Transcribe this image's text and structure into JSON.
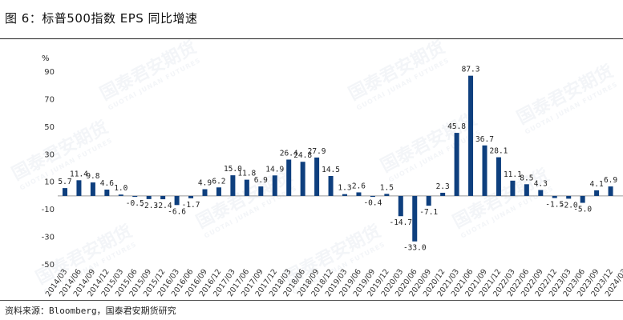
{
  "title": "图 6：标普500指数 EPS 同比增速",
  "source": "资料来源：Bloomberg，国泰君安期货研究",
  "watermark": {
    "cn": "国泰君安期货",
    "en": "GUOTAI JUNAN FUTURES"
  },
  "colors": {
    "bar": "#0E3F7E",
    "text": "#222222",
    "axis": "#666666"
  },
  "chart_data": {
    "type": "bar",
    "unit": "%",
    "ylim": [
      -50,
      90
    ],
    "yticks": [
      -50,
      -30,
      -10,
      10,
      30,
      50,
      70,
      90
    ],
    "grid": false,
    "categories": [
      "2014/03",
      "2014/06",
      "2014/09",
      "2014/12",
      "2015/03",
      "2015/06",
      "2015/09",
      "2015/12",
      "2016/03",
      "2016/06",
      "2016/09",
      "2016/12",
      "2017/03",
      "2017/06",
      "2017/09",
      "2017/12",
      "2018/03",
      "2018/06",
      "2018/09",
      "2018/12",
      "2019/03",
      "2019/06",
      "2019/09",
      "2019/12",
      "2020/03",
      "2020/06",
      "2020/09",
      "2020/12",
      "2021/03",
      "2021/06",
      "2021/09",
      "2021/12",
      "2022/03",
      "2022/06",
      "2022/09",
      "2022/12",
      "2023/03",
      "2023/06",
      "2023/09",
      "2023/12",
      "2024/03"
    ],
    "values": [
      5.7,
      11.4,
      9.8,
      4.6,
      1.0,
      -0.5,
      -2.3,
      -2.4,
      -6.6,
      -1.7,
      4.9,
      6.2,
      15.0,
      11.8,
      6.9,
      14.9,
      26.4,
      24.8,
      27.9,
      14.5,
      1.3,
      2.6,
      -0.4,
      1.5,
      -14.7,
      -33.0,
      -7.1,
      2.3,
      45.8,
      87.3,
      36.7,
      28.1,
      11.1,
      8.5,
      4.3,
      -1.5,
      -2.0,
      -5.0,
      4.1,
      6.9,
      null
    ],
    "labels": [
      "5.7",
      "11.4",
      "9.8",
      "4.6",
      "1.0",
      "-0.5",
      "-2.3",
      "-2.4",
      "-6.6",
      "-1.7",
      "4.9",
      "6.2",
      "15.0",
      "11.8",
      "6.9",
      "14.9",
      "26.4",
      "24.8",
      "27.9",
      "14.5",
      "1.3",
      "2.6",
      "-0.4",
      "1.5",
      "-14.7",
      "-33.0",
      "-7.1",
      "2.3",
      "45.8",
      "87.3",
      "36.7",
      "28.1",
      "11.1",
      "8.5",
      "4.3",
      "-1.5",
      "-2.0",
      "-5.0",
      "4.1",
      "6.9",
      ""
    ]
  }
}
